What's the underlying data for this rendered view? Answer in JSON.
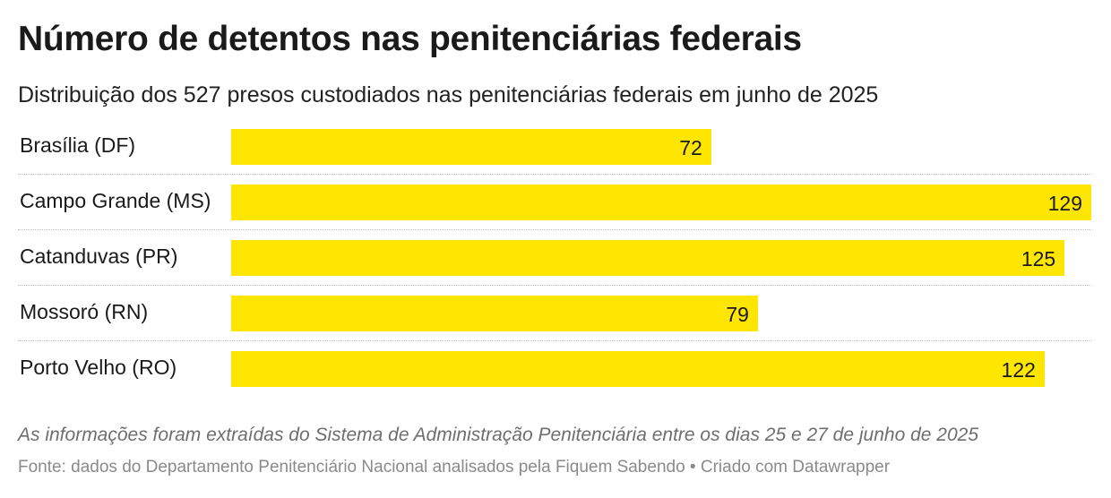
{
  "title": "Número de detentos nas penitenciárias federais",
  "subtitle": "Distribuição dos 527 presos custodiados nas penitenciárias federais em junho de 2025",
  "notes": "As informações foram extraídas do Sistema de Administração Penitenciária entre os dias 25 e 27 de junho de 2025",
  "source": "Fonte: dados do Departamento Penitenciário Nacional analisados pela Fiquem Sabendo • Criado com Datawrapper",
  "colors": {
    "bar": "#ffe600",
    "text": "#1a1a1a",
    "note": "#6e6e6e",
    "source": "#8a8a8a"
  },
  "chart_data": {
    "type": "bar",
    "orientation": "horizontal",
    "title": "Número de detentos nas penitenciárias federais",
    "xlabel": "",
    "ylabel": "",
    "xlim": [
      0,
      129
    ],
    "categories": [
      "Brasília (DF)",
      "Campo Grande (MS)",
      "Catanduvas (PR)",
      "Mossoró (RN)",
      "Porto Velho (RO)"
    ],
    "values": [
      72,
      129,
      125,
      79,
      122
    ]
  }
}
